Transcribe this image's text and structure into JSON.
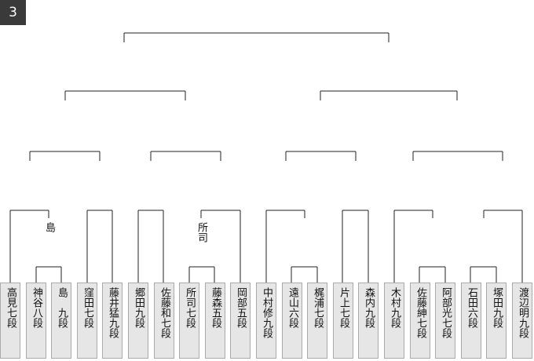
{
  "badge": "3",
  "players": [
    "高見七段",
    "神谷八段",
    "島　九段",
    "窪田七段",
    "藤井猛九段",
    "郷田九段",
    "佐藤和七段",
    "所司七段",
    "藤森五段",
    "岡部五段",
    "中村修九段",
    "遠山六段",
    "梶浦七段",
    "片上七段",
    "森内九段",
    "木村九段",
    "佐藤紳七段",
    "阿部光七段",
    "石田六段",
    "塚田九段",
    "渡辺明九段"
  ],
  "winners": [
    "島",
    "所司"
  ]
}
